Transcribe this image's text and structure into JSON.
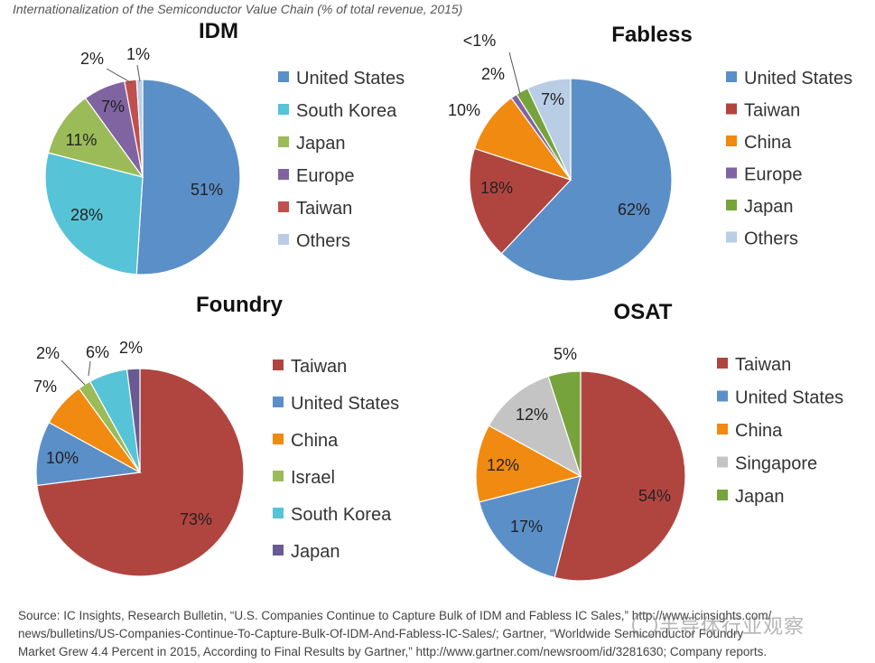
{
  "header": {
    "caption": "Internationalization of the Semiconductor Value Chain (% of total revenue, 2015)"
  },
  "chart_data": [
    {
      "type": "pie",
      "title": "IDM",
      "legend": [
        "United States",
        "South Korea",
        "Japan",
        "Europe",
        "Taiwan",
        "Others"
      ],
      "slices": [
        {
          "name": "United States",
          "value": 51,
          "label": "51%",
          "color": "#5B8FC8"
        },
        {
          "name": "South Korea",
          "value": 28,
          "label": "28%",
          "color": "#57C3D6"
        },
        {
          "name": "Japan",
          "value": 11,
          "label": "11%",
          "color": "#9BBB59"
        },
        {
          "name": "Europe",
          "value": 7,
          "label": "7%",
          "color": "#8064A2"
        },
        {
          "name": "Taiwan",
          "value": 2,
          "label": "2%",
          "color": "#C0504D"
        },
        {
          "name": "Others",
          "value": 1,
          "label": "1%",
          "color": "#B9CDE5"
        }
      ]
    },
    {
      "type": "pie",
      "title": "Fabless",
      "legend": [
        "United States",
        "Taiwan",
        "China",
        "Europe",
        "Japan",
        "Others"
      ],
      "slices": [
        {
          "name": "United States",
          "value": 62,
          "label": "62%",
          "color": "#5B8FC8"
        },
        {
          "name": "Taiwan",
          "value": 18,
          "label": "18%",
          "color": "#B0453F"
        },
        {
          "name": "China",
          "value": 10,
          "label": "10%",
          "color": "#F08A10"
        },
        {
          "name": "Europe",
          "value": 1,
          "label": "<1%",
          "color": "#8064A2"
        },
        {
          "name": "Japan",
          "value": 2,
          "label": "2%",
          "color": "#77A33D"
        },
        {
          "name": "Others",
          "value": 7,
          "label": "7%",
          "color": "#B9CDE5"
        }
      ]
    },
    {
      "type": "pie",
      "title": "Foundry",
      "legend": [
        "Taiwan",
        "United States",
        "China",
        "Israel",
        "South Korea",
        "Japan"
      ],
      "slices": [
        {
          "name": "Taiwan",
          "value": 73,
          "label": "73%",
          "color": "#B0453F"
        },
        {
          "name": "United States",
          "value": 10,
          "label": "10%",
          "color": "#5B8FC8"
        },
        {
          "name": "China",
          "value": 7,
          "label": "7%",
          "color": "#F08A10"
        },
        {
          "name": "Israel",
          "value": 2,
          "label": "2%",
          "color": "#9BBB59"
        },
        {
          "name": "South Korea",
          "value": 6,
          "label": "6%",
          "color": "#57C3D6"
        },
        {
          "name": "Japan",
          "value": 2,
          "label": "2%",
          "color": "#6A5A94"
        }
      ]
    },
    {
      "type": "pie",
      "title": "OSAT",
      "legend": [
        "Taiwan",
        "United States",
        "China",
        "Singapore",
        "Japan"
      ],
      "slices": [
        {
          "name": "Taiwan",
          "value": 54,
          "label": "54%",
          "color": "#B0453F"
        },
        {
          "name": "United States",
          "value": 17,
          "label": "17%",
          "color": "#5B8FC8"
        },
        {
          "name": "China",
          "value": 12,
          "label": "12%",
          "color": "#F08A10"
        },
        {
          "name": "Singapore",
          "value": 12,
          "label": "12%",
          "color": "#C4C4C4"
        },
        {
          "name": "Japan",
          "value": 5,
          "label": "5%",
          "color": "#77A33D"
        }
      ]
    }
  ],
  "source": {
    "line1": "Source:  IC Insights, Research Bulletin, “U.S. Companies Continue to Capture Bulk of IDM and Fabless IC Sales,” http://www.icinsights.com/",
    "line2": "news/bulletins/US-Companies-Continue-To-Capture-Bulk-Of-IDM-And-Fabless-IC-Sales/; Gartner, “Worldwide Semiconductor Foundry",
    "line3": "Market Grew 4.4 Percent in 2015, According to Final Results by Gartner,” http://www.gartner.com/newsroom/id/3281630; Company reports."
  },
  "watermark": {
    "text": "半导体行业观察"
  }
}
